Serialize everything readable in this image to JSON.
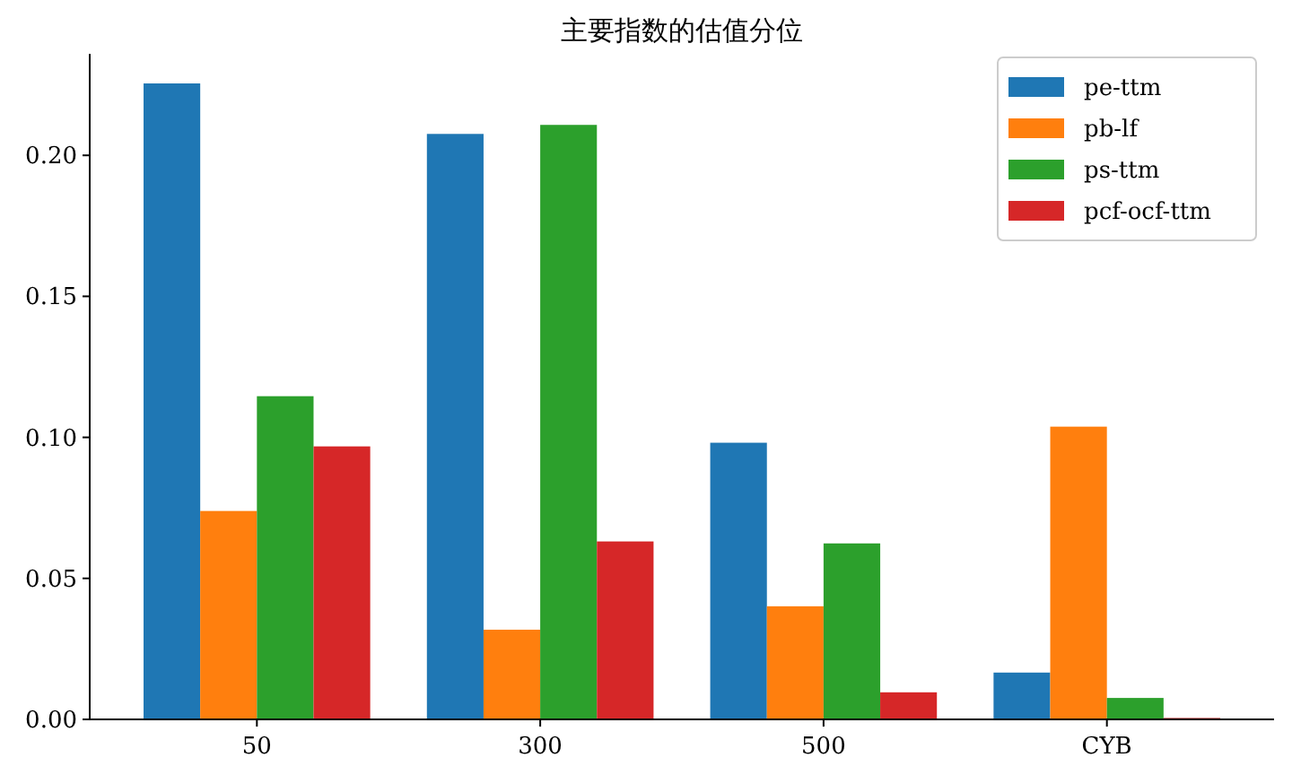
{
  "chart_data": {
    "type": "bar",
    "title": "主要指数的估值分位",
    "categories": [
      "50",
      "300",
      "500",
      "CYB"
    ],
    "series": [
      {
        "name": "pe-ttm",
        "color": "#1f77b4",
        "values": [
          0.2255,
          0.2076,
          0.0981,
          0.0166
        ]
      },
      {
        "name": "pb-lf",
        "color": "#ff7f0e",
        "values": [
          0.0739,
          0.0318,
          0.0401,
          0.1038
        ]
      },
      {
        "name": "ps-ttm",
        "color": "#2ca02c",
        "values": [
          0.1146,
          0.2108,
          0.0624,
          0.0076
        ]
      },
      {
        "name": "pcf-ocf-ttm",
        "color": "#d62728",
        "values": [
          0.0968,
          0.0631,
          0.0096,
          0.0005
        ]
      }
    ],
    "ylim": [
      0,
      0.236
    ],
    "yticks": [
      {
        "value": 0,
        "label": "0.00"
      },
      {
        "value": 0.05,
        "label": "0.05"
      },
      {
        "value": 0.1,
        "label": "0.10"
      },
      {
        "value": 0.15,
        "label": "0.15"
      },
      {
        "value": 0.2,
        "label": "0.20"
      }
    ],
    "legend": "top right",
    "grid": false
  }
}
